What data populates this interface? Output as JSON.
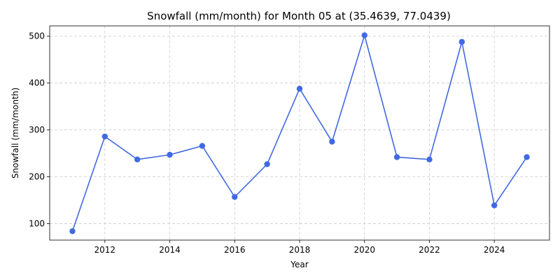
{
  "chart_data": {
    "type": "line",
    "title": "Snowfall (mm/month) for Month 05 at (35.4639, 77.0439)",
    "xlabel": "Year",
    "ylabel": "Snowfall (mm/month)",
    "xlim": [
      2010.3,
      2025.7
    ],
    "ylim": [
      65,
      522
    ],
    "xticks": [
      2012,
      2014,
      2016,
      2018,
      2020,
      2022,
      2024
    ],
    "yticks": [
      100,
      200,
      300,
      400,
      500
    ],
    "grid": true,
    "series": [
      {
        "color": "#4169e1",
        "marker": "circle",
        "x": [
          2011,
          2012,
          2013,
          2014,
          2015,
          2016,
          2017,
          2018,
          2019,
          2020,
          2021,
          2022,
          2023,
          2024,
          2025
        ],
        "y": [
          84,
          286,
          237,
          247,
          266,
          157,
          227,
          388,
          275,
          502,
          242,
          237,
          488,
          139,
          242
        ]
      }
    ]
  }
}
